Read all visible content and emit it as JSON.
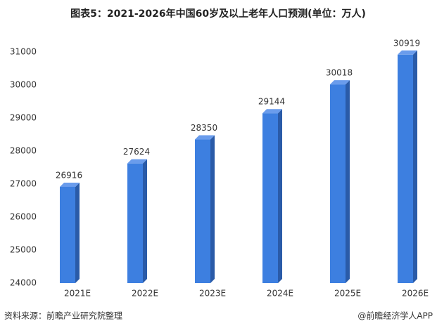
{
  "chart_data": {
    "type": "bar",
    "title": "图表5：2021-2026年中国60岁及以上老年人口预测(单位：万人)",
    "categories": [
      "2021E",
      "2022E",
      "2023E",
      "2024E",
      "2025E",
      "2026E"
    ],
    "values": [
      26916,
      27624,
      28350,
      29144,
      30018,
      30919
    ],
    "color": "#3d7fe0",
    "ylim": [
      24000,
      31000
    ],
    "yticks": [
      24000,
      25000,
      26000,
      27000,
      28000,
      29000,
      30000,
      31000
    ],
    "grid": false,
    "source": "资料来源：前瞻产业研究院整理",
    "credit": "@前瞻经济学人APP"
  }
}
